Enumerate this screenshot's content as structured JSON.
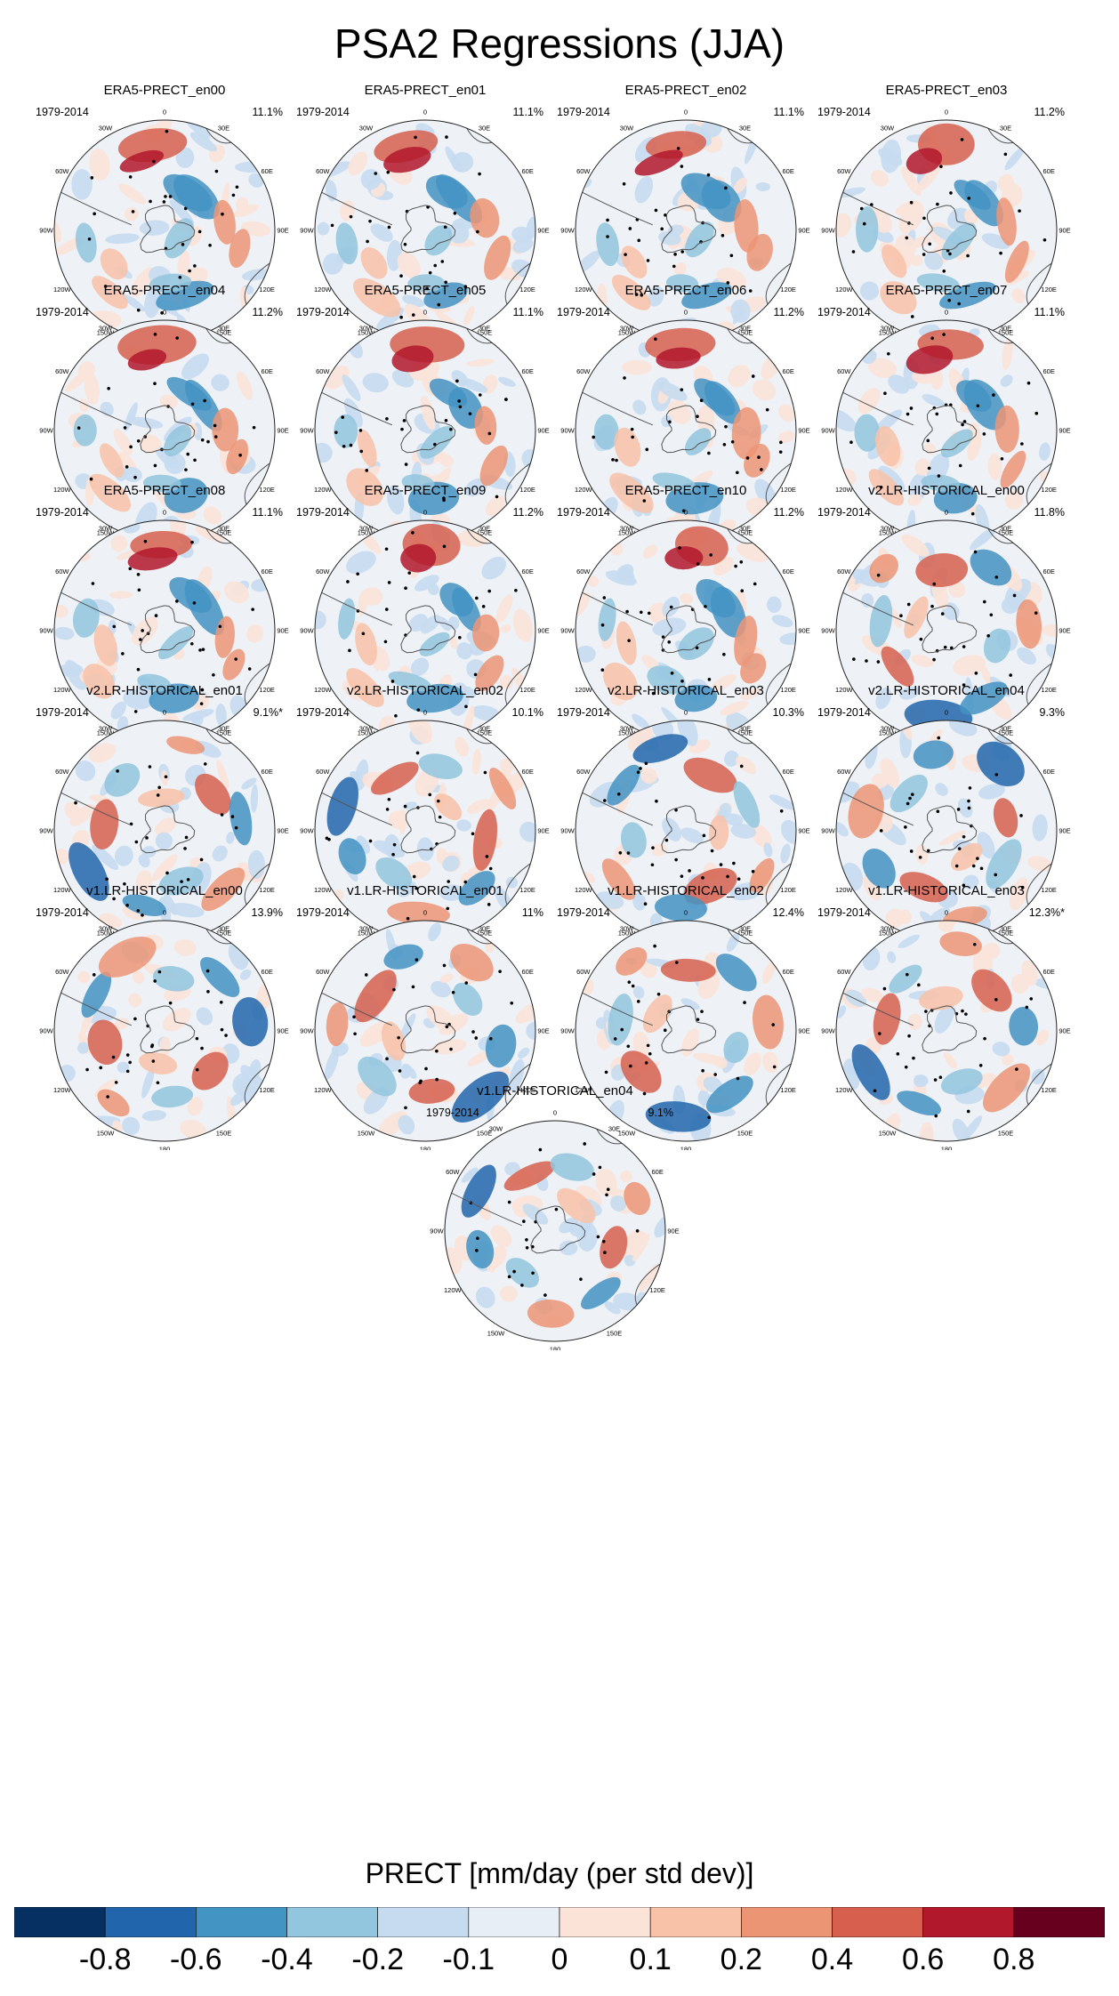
{
  "title": "PSA2 Regressions (JJA)",
  "panels": [
    {
      "name": "ERA5-PRECT_en00",
      "period": "1979-2014",
      "pct": "11.1%",
      "style": "era5"
    },
    {
      "name": "ERA5-PRECT_en01",
      "period": "1979-2014",
      "pct": "11.1%",
      "style": "era5"
    },
    {
      "name": "ERA5-PRECT_en02",
      "period": "1979-2014",
      "pct": "11.1%",
      "style": "era5"
    },
    {
      "name": "ERA5-PRECT_en03",
      "period": "1979-2014",
      "pct": "11.2%",
      "style": "era5"
    },
    {
      "name": "ERA5-PRECT_en04",
      "period": "1979-2014",
      "pct": "11.2%",
      "style": "era5"
    },
    {
      "name": "ERA5-PRECT_en05",
      "period": "1979-2014",
      "pct": "11.1%",
      "style": "era5"
    },
    {
      "name": "ERA5-PRECT_en06",
      "period": "1979-2014",
      "pct": "11.2%",
      "style": "era5"
    },
    {
      "name": "ERA5-PRECT_en07",
      "period": "1979-2014",
      "pct": "11.1%",
      "style": "era5"
    },
    {
      "name": "ERA5-PRECT_en08",
      "period": "1979-2014",
      "pct": "11.1%",
      "style": "era5"
    },
    {
      "name": "ERA5-PRECT_en09",
      "period": "1979-2014",
      "pct": "11.2%",
      "style": "era5"
    },
    {
      "name": "ERA5-PRECT_en10",
      "period": "1979-2014",
      "pct": "11.2%",
      "style": "era5"
    },
    {
      "name": "v2.LR-HISTORICAL_en00",
      "period": "1979-2014",
      "pct": "11.8%",
      "style": "model"
    },
    {
      "name": "v2.LR-HISTORICAL_en01",
      "period": "1979-2014",
      "pct": "9.1%*",
      "style": "model"
    },
    {
      "name": "v2.LR-HISTORICAL_en02",
      "period": "1979-2014",
      "pct": "10.1%",
      "style": "model"
    },
    {
      "name": "v2.LR-HISTORICAL_en03",
      "period": "1979-2014",
      "pct": "10.3%",
      "style": "model"
    },
    {
      "name": "v2.LR-HISTORICAL_en04",
      "period": "1979-2014",
      "pct": "9.3%",
      "style": "model"
    },
    {
      "name": "v1.LR-HISTORICAL_en00",
      "period": "1979-2014",
      "pct": "13.9%",
      "style": "model"
    },
    {
      "name": "v1.LR-HISTORICAL_en01",
      "period": "1979-2014",
      "pct": "11%",
      "style": "model"
    },
    {
      "name": "v1.LR-HISTORICAL_en02",
      "period": "1979-2014",
      "pct": "12.4%",
      "style": "model"
    },
    {
      "name": "v1.LR-HISTORICAL_en03",
      "period": "1979-2014",
      "pct": "12.3%*",
      "style": "model"
    },
    {
      "name": "v1.LR-HISTORICAL_en04",
      "period": "1979-2014",
      "pct": "9.1%",
      "style": "model"
    }
  ],
  "lon_labels": [
    "0",
    "30E",
    "60E",
    "90E",
    "120E",
    "150E",
    "180",
    "150W",
    "120W",
    "90W",
    "60W",
    "30W"
  ],
  "colorbar": {
    "title": "PRECT [mm/day (per std dev)]",
    "labels": [
      "-0.8",
      "-0.6",
      "-0.4",
      "-0.2",
      "-0.1",
      "0",
      "0.1",
      "0.2",
      "0.4",
      "0.6",
      "0.8"
    ],
    "colors": [
      "#053061",
      "#2166ac",
      "#4393c3",
      "#92c5de",
      "#c6dbef",
      "#e8eef5",
      "#fbe3d8",
      "#f8c2a8",
      "#ec9575",
      "#d6604d",
      "#b2182b",
      "#67001f"
    ]
  },
  "chart_data": {
    "type": "heatmap",
    "title": "PSA2 Regressions (JJA)",
    "projection": "south polar stereographic",
    "variable": "PRECT",
    "units": "mm/day (per std dev)",
    "levels": [
      -0.8,
      -0.6,
      -0.4,
      -0.2,
      -0.1,
      0,
      0.1,
      0.2,
      0.4,
      0.6,
      0.8
    ],
    "period": "1979-2014",
    "season": "JJA",
    "panel_count": 21
  }
}
